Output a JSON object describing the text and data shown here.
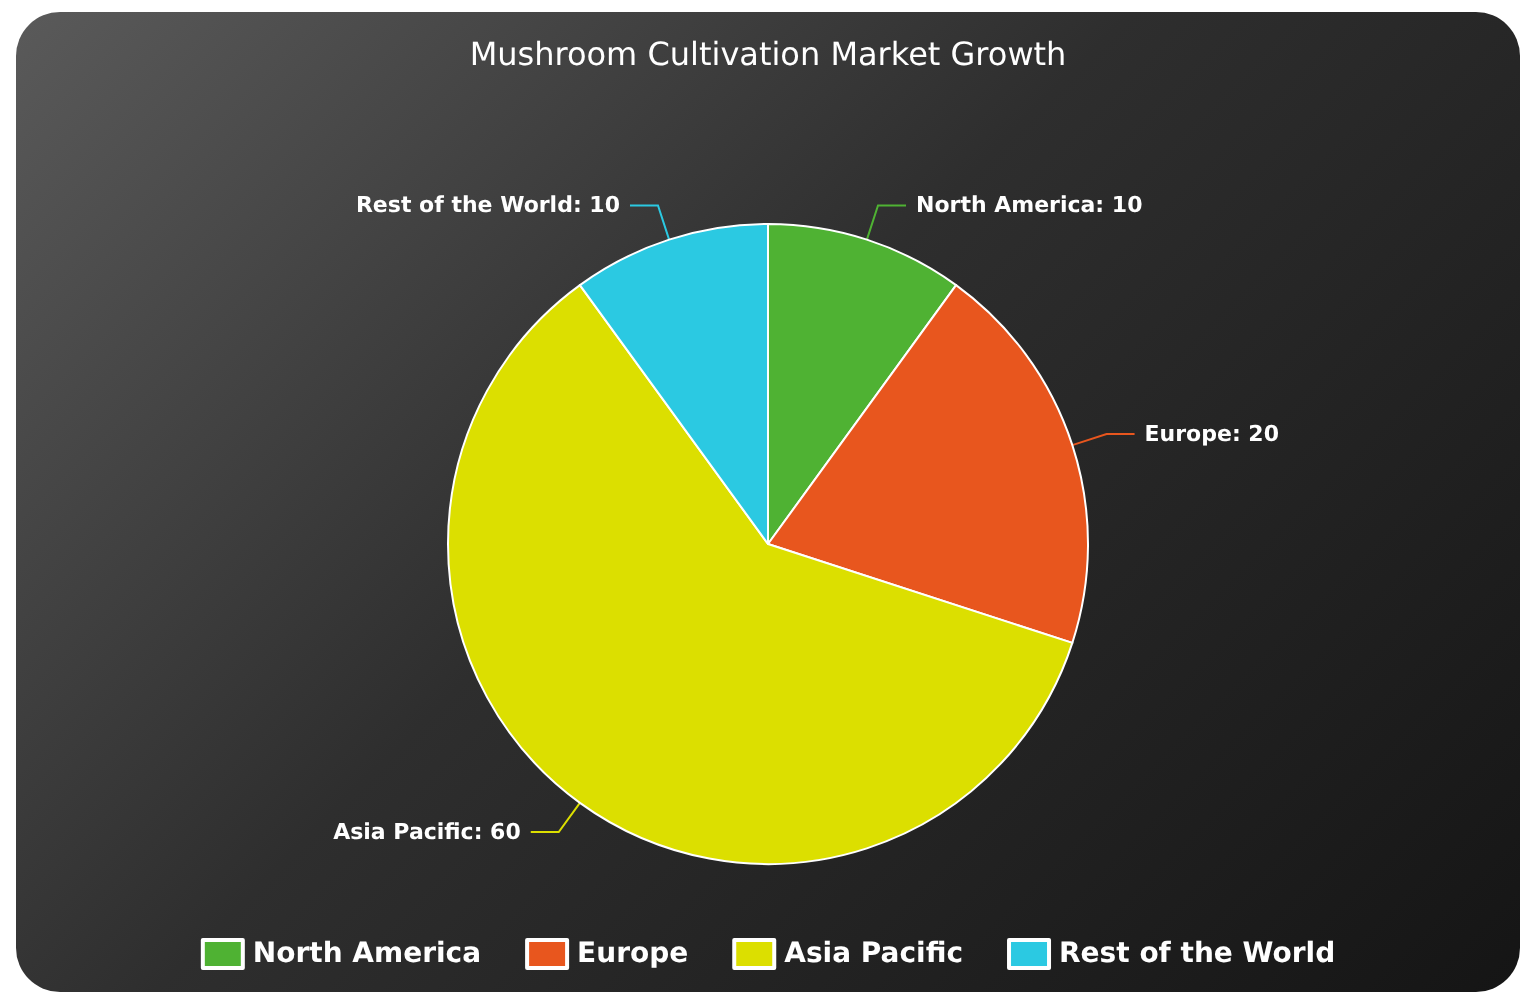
{
  "chart_data": {
    "type": "pie",
    "title": "Mushroom Cultivation Market Growth",
    "categories": [
      "North America",
      "Europe",
      "Asia Pacific",
      "Rest of the World"
    ],
    "values": [
      10,
      20,
      60,
      10
    ],
    "colors": [
      "#4fb233",
      "#e8561e",
      "#dcdf00",
      "#2bc9e2"
    ],
    "value_labels": [
      "North America: 10",
      "Europe: 20",
      "Asia Pacific: 60",
      "Rest of the World: 10"
    ],
    "legend": "bottom"
  }
}
